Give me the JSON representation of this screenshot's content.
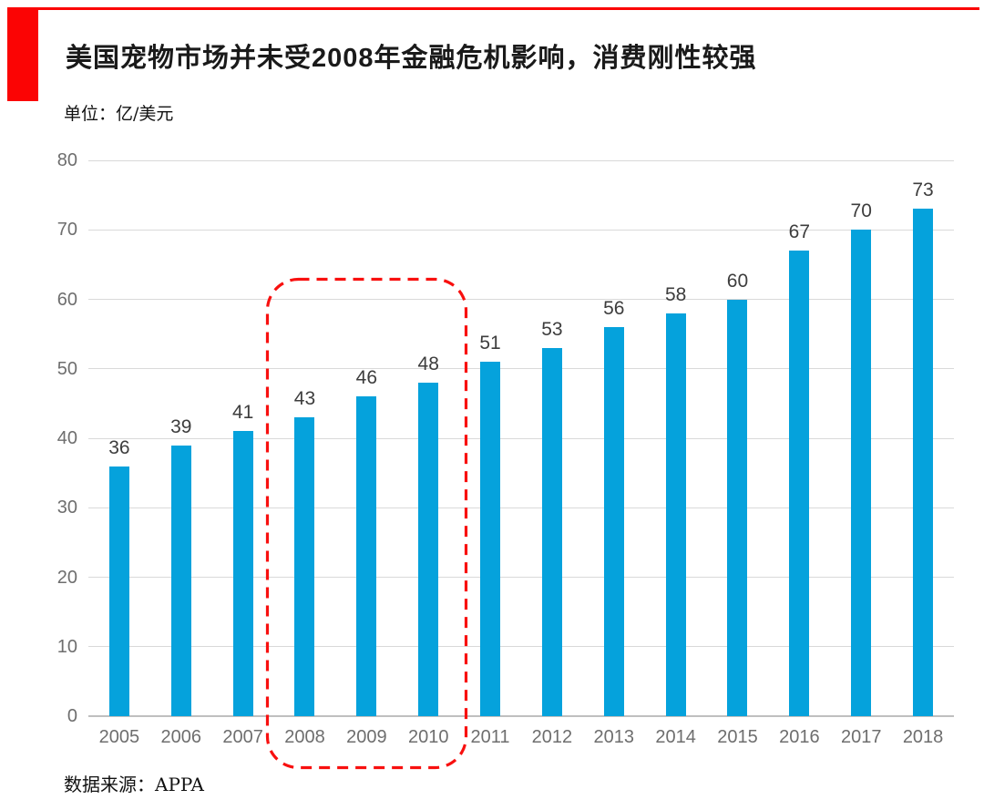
{
  "header": {
    "title": "美国宠物市场并未受2008年金融危机影响，消费刚性较强",
    "unit_label": "单位：亿/美元"
  },
  "footer": {
    "source_label": "数据来源：APPA"
  },
  "chart_data": {
    "type": "bar",
    "title": "美国宠物市场并未受2008年金融危机影响，消费刚性较强",
    "unit": "亿/美元",
    "source": "APPA",
    "categories": [
      "2005",
      "2006",
      "2007",
      "2008",
      "2009",
      "2010",
      "2011",
      "2012",
      "2013",
      "2014",
      "2015",
      "2016",
      "2017",
      "2018"
    ],
    "values": [
      36,
      39,
      41,
      43,
      46,
      48,
      51,
      53,
      56,
      58,
      60,
      67,
      70,
      73
    ],
    "xlabel": "",
    "ylabel": "",
    "ylim": [
      0,
      80
    ],
    "ytick_step": 10,
    "grid": "horizontal-only",
    "legend": "none",
    "data_labels": "above-bars",
    "annotation": {
      "type": "dashed-rounded-box",
      "highlighted_categories": [
        "2008",
        "2009",
        "2010"
      ],
      "meaning": "2008 financial crisis period"
    }
  },
  "colors": {
    "bar_blue": "#05a2dc",
    "highlight_red": "#f8100f",
    "accent_red": "#fb0404",
    "gridline": "#d9d9d9",
    "axis_line": "#bfbfbf",
    "tick_text": "#6e6e6e",
    "value_text": "#3d3d3d"
  }
}
